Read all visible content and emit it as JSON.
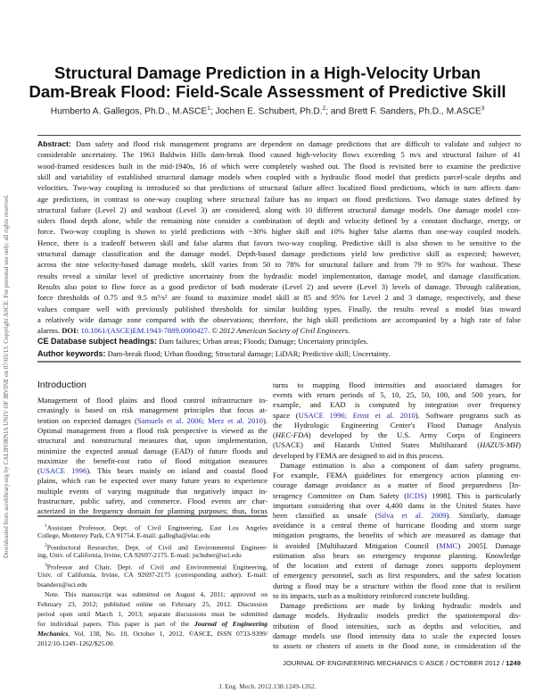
{
  "side_note": "Downloaded from ascelibrary.org by CALIFORNIA UNIV OF IRVINE on 07/03/13. Copyright ASCE. For personal use only; all rights reserved.",
  "title": {
    "line1": "Structural Damage Prediction in a High-Velocity Urban",
    "line2": "Dam-Break Flood: Field-Scale Assessment of Predictive Skill"
  },
  "authors": [
    {
      "name": "Humberto A. Gallegos, Ph.D., M.ASCE",
      "sup": "1",
      "sep": "; "
    },
    {
      "name": "Jochen E. Schubert, Ph.D.",
      "sup": "2",
      "sep": "; and "
    },
    {
      "name": "Brett F. Sanders, Ph.D., M.ASCE",
      "sup": "3",
      "sep": ""
    }
  ],
  "abstract_lines": [
    [
      {
        "bs": "Abstract: "
      },
      "Dam safety and flood risk management programs are dependent on damage predictions that are difficult to validate and subject to"
    ],
    [
      "considerable uncertainty. The 1963 Baldwin Hills dam-break flood caused high-velocity flows exceeding 5 m/s and structural failure of 41"
    ],
    [
      "wood-framed residences built in the mid-1940s, 16 of which were completely washed out. The flood is revisited here to examine the predictive"
    ],
    [
      "skill and variability of established structural damage models when coupled with a hydraulic flood model that predicts parcel-scale depths and"
    ],
    [
      "velocities. Two-way coupling is introduced so that predictions of structural failure affect localized flood predictions, which in turn affects dam-"
    ],
    [
      "age predictions, in contrast to one-way coupling where structural failure has no impact on flood predictions. Two damage states defined by"
    ],
    [
      "structural failure (Level 2) and washout (Level 3) are considered, along with 10 different structural damage models. One damage model con-"
    ],
    [
      "siders flood depth alone, while the remaining nine consider a combination of depth and velocity defined by a constant discharge, energy, or"
    ],
    [
      "force. Two-way coupling is shown to yield predictions with ~30% higher skill and 10% higher false alarms than one-way coupled models."
    ],
    [
      "Hence, there is a tradeoff between skill and false alarms that favors two-way coupling. Predictive skill is also shown to be sensitive to the"
    ],
    [
      "structural damage classification and the damage model. Depth-based damage predictions yield low predictive skill as expected; however,"
    ],
    [
      "across the nine velocity-based damage models, skill varies from 50 to 78% for structural failure and from 79 to 95% for washout. These"
    ],
    [
      "results reveal a similar level of predictive uncertainty from the hydraulic model implementation, damage model, and damage classification."
    ],
    [
      "Results also point to flow force as a good predictor of both moderate (Level 2) and severe (Level 3) levels of damage. Through calibration,"
    ],
    [
      "force thresholds of 0.75 and 9.5 m³/s² are found to maximize model skill at 85 and 95% for Level 2 and 3 damage, respectively, and these"
    ],
    [
      "values compare well with previously published thresholds for similar building types. Finally, the results reveal a model bias toward"
    ],
    [
      "a relatively wide damage zone compared with the observations; therefore, the high skill predictions are accompanied by a high rate of false"
    ],
    [
      "alarms. ",
      {
        "b": "DOI: "
      },
      {
        "a": "10.1061/(ASCE)EM.1943-7889.0000427"
      },
      ". ",
      {
        "i": "© 2012 American Society of Civil Engineers."
      }
    ]
  ],
  "subject_headings": {
    "label": "CE Database subject headings:",
    "text": " Dam failures; Urban areas; Floods; Damage; Uncertainty principles."
  },
  "author_keywords": {
    "label": "Author keywords:",
    "text": " Dam-break flood; Urban flooding; Structural damage; LiDAR; Predictive skill; Uncertainty."
  },
  "intro_heading": "Introduction",
  "left_lines": [
    [
      "Management of flood plains and flood control infrastructure in-"
    ],
    [
      "creasingly is based on risk management principles that focus at-"
    ],
    [
      "tention on expected damages (",
      {
        "a": "Samuels et al. 2006; Merz et al. 2010"
      },
      ")."
    ],
    [
      "Optimal management from a flood risk perspective is viewed as the"
    ],
    [
      "structural and nonstructural measures that, upon implementation,"
    ],
    [
      "minimize the expected annual damage (EAD) of future floods and"
    ],
    [
      "maximize the benefit-cost ratio of flood mitigation measures"
    ],
    [
      "(",
      {
        "a": "USACE 1996"
      },
      "). This bears mainly on inland and coastal flood"
    ],
    [
      "plains, which can be expected over many future years to experience"
    ],
    [
      "multiple events of varying magnitude that negatively impact in-"
    ],
    [
      "frastructure, public safety, and commerce. Flood events are char-"
    ],
    [
      "acterized in the frequency domain for planning purposes; thus, focus"
    ]
  ],
  "footnote_lines": [
    [
      {
        "sup": "1"
      },
      "Assistant Professor, Dept. of Civil Engineering, East Los Angeles"
    ],
    [
      "College, Monterey Park, CA 91754. E-mail: gallegha@elac.edu"
    ],
    [
      {
        "sup": "2"
      },
      "Postdoctoral Researcher, Dept. of Civil and Environmental Engineer-"
    ],
    [
      "ing, Univ. of California, Irvine, CA 92697-2175. E-mail: jschuber@uci.edu"
    ],
    [
      {
        "sup": "3"
      },
      "Professor and Chair, Dept. of Civil and Environmental Engineering,"
    ],
    [
      "Univ. of California, Irvine, CA 92697-2175 (corresponding author). E-mail:"
    ],
    [
      "bsanders@uci.edu"
    ],
    [
      "Note. This manuscript was submitted on August 4, 2011; approved on"
    ],
    [
      "February 23, 2012; published online on February 25, 2012. Discussion"
    ],
    [
      "period open until March 1, 2013; separate discussions must be submitted"
    ],
    [
      "for individual papers. This paper is part of the ",
      {
        "bi": "Journal of Engineering"
      }
    ],
    [
      {
        "bi": "Mechanics"
      },
      ", Vol. 138, No. 10, October 1, 2012. ©ASCE, ISSN 0733-9399/"
    ],
    [
      "2012/10-1249–1262/$25.00."
    ]
  ],
  "right_lines": [
    [
      "turns to mapping flood intensities and associated damages for"
    ],
    [
      "events with return periods of 5, 10, 25, 50, 100, and 500 years, for"
    ],
    [
      "example, and EAD is computed by integration over frequency"
    ],
    [
      "space (",
      {
        "a": "USACE 1996; Ernst et al. 2010"
      },
      "). Software programs such as"
    ],
    [
      "the Hydrologic Engineering Center's Flood Damage Analysis"
    ],
    [
      "(",
      {
        "i": "HEC-FDA"
      },
      ") developed by the U.S. Army Corps of Engineers"
    ],
    [
      "(USACE) and Hazards United States Multihazard (",
      {
        "i": "HAZUS-MH"
      },
      ")"
    ],
    [
      "developed by FEMA are designed to aid in this process."
    ],
    [
      "Damage estimation is also a component of dam safety programs."
    ],
    [
      "For example, FEMA guidelines for emergency action planning en-"
    ],
    [
      "courage damage avoidance as a matter of flood preparedness [In-"
    ],
    [
      "teragency Committee on Dam Safety (",
      {
        "a": "ICDS"
      },
      ") 1998]. This is particularly"
    ],
    [
      "important considering that over 4,400 dams in the United States have"
    ],
    [
      "been classified as unsafe (",
      {
        "a": "Silva et al. 2009"
      },
      "). Similarly, damage"
    ],
    [
      "avoidance is a central theme of hurricane flooding and storm surge"
    ],
    [
      "mitigation programs, the benefits of which are measured as damage that"
    ],
    [
      "is avoided [Multihazard Mitigation Council (",
      {
        "a": "MMC"
      },
      ") 2005]. Damage"
    ],
    [
      "estimation also bears on emergency response planning. Knowledge"
    ],
    [
      "of the location and extent of damage zones supports deployment"
    ],
    [
      "of emergency personnel, such as first responders, and the safest location"
    ],
    [
      "during a flood may be a structure within the flood zone that is resilient"
    ],
    [
      "to its impacts, such as a multistory reinforced concrete building."
    ],
    [
      "Damage predictions are made by linking hydraulic models and"
    ],
    [
      "damage models. Hydraulic models predict the spatiotemporal dis-"
    ],
    [
      "tribution of flood intensities, such as depths and velocities, and"
    ],
    [
      "damage models use flood intensity data to scale the expected losses"
    ],
    [
      "to assets or clusters of assets in the flood zone, in consideration of the"
    ]
  ],
  "footer": {
    "journal": "JOURNAL OF ENGINEERING MECHANICS © ASCE / OCTOBER 2012 / ",
    "page": "1249",
    "citation": "J. Eng. Mech. 2012.138:1249-1262."
  },
  "colors": {
    "link": "#1c2fb8",
    "text": "#111111",
    "rule": "#444444"
  }
}
